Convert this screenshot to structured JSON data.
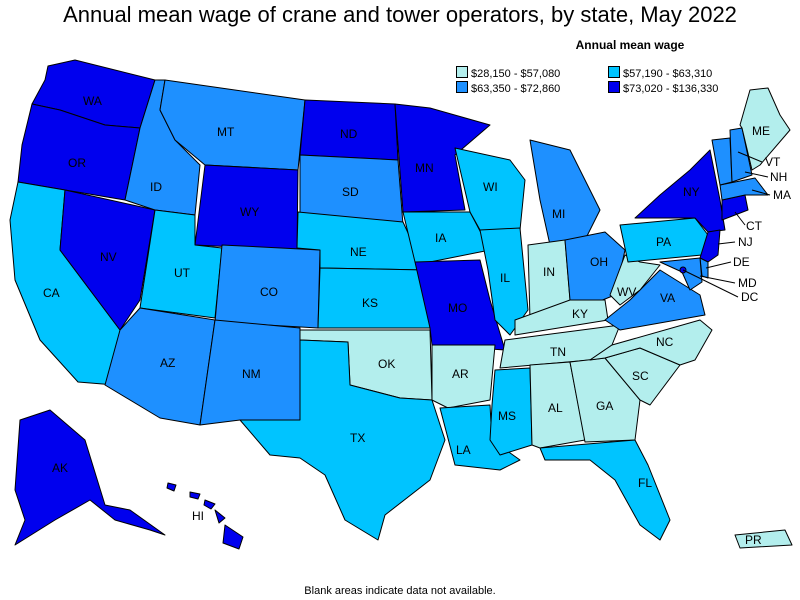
{
  "title": "Annual mean wage of crane and tower operators, by state, May 2022",
  "legend": {
    "title": "Annual mean wage",
    "ranges": [
      {
        "label": "$28,150 - $57,080",
        "color": "#b3eeed"
      },
      {
        "label": "$57,190 - $63,310",
        "color": "#00c4ff"
      },
      {
        "label": "$63,350 - $72,860",
        "color": "#1e90ff"
      },
      {
        "label": "$73,020 - $136,330",
        "color": "#0000ee"
      }
    ]
  },
  "footnote": "Blank areas indicate data not available.",
  "states": {
    "WA": 3,
    "OR": 3,
    "CA": 1,
    "NV": 3,
    "ID": 2,
    "MT": 2,
    "WY": 3,
    "UT": 1,
    "CO": 2,
    "AZ": 2,
    "NM": 2,
    "ND": 3,
    "SD": 2,
    "NE": 1,
    "KS": 1,
    "OK": 0,
    "TX": 1,
    "MN": 3,
    "IA": 1,
    "MO": 3,
    "AR": 0,
    "LA": 1,
    "WI": 1,
    "IL": 1,
    "MI": 2,
    "IN": 0,
    "OH": 2,
    "KY": 0,
    "TN": 0,
    "MS": 1,
    "AL": 0,
    "GA": 0,
    "FL": 1,
    "SC": 0,
    "NC": 0,
    "VA": 2,
    "WV": 0,
    "PA": 1,
    "NY": 3,
    "ME": 0,
    "VT": 2,
    "NH": 2,
    "MA": 2,
    "CT": 3,
    "NJ": 3,
    "DE": 2,
    "MD": 2,
    "DC": 3,
    "AK": 3,
    "HI": 3,
    "PR": 0
  }
}
